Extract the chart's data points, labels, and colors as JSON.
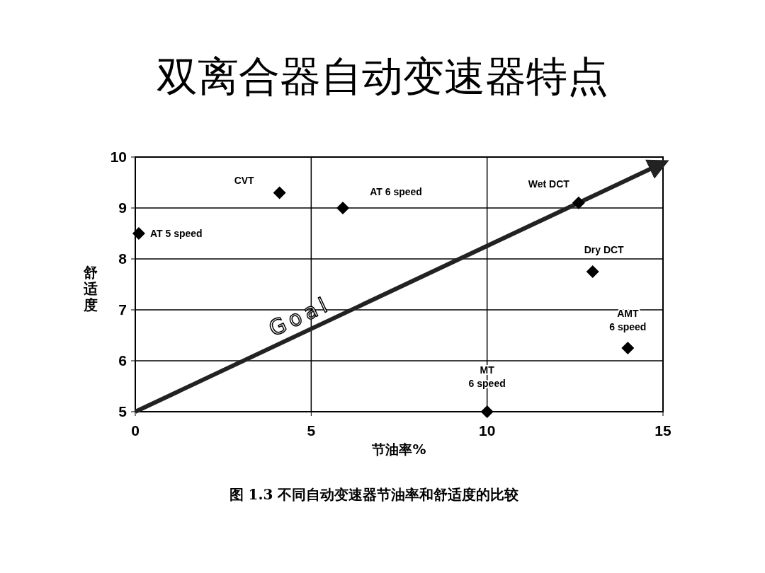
{
  "chart_data": {
    "type": "scatter",
    "title": "双离合器自动变速器特点",
    "xlabel": "节油率%",
    "ylabel": "舒适度",
    "xlim": [
      0,
      15
    ],
    "xticks": [
      0,
      5,
      10,
      15
    ],
    "ylim": [
      5,
      10
    ],
    "yticks": [
      5,
      6,
      7,
      8,
      9,
      10
    ],
    "grid": true,
    "series": [
      {
        "type": "line",
        "name": "Goal",
        "color": "#222222",
        "marker": "none",
        "x": [
          0,
          14.9
        ],
        "values": [
          5,
          9.85
        ]
      },
      {
        "color": "#000000",
        "marker": "diamond",
        "x": [
          4.1,
          5.9,
          0.1,
          12.6,
          13.0,
          14.0,
          10.0
        ],
        "values": [
          9.3,
          9.0,
          8.5,
          9.1,
          7.75,
          6.25,
          5.0
        ]
      }
    ],
    "annotations": [
      {
        "text": "CVT",
        "x": 4.1,
        "y": 9.3
      },
      {
        "text": "AT 6 speed",
        "x": 5.9,
        "y": 9.0
      },
      {
        "text": "AT 5 speed",
        "x": 0.1,
        "y": 8.5
      },
      {
        "text": "Wet DCT",
        "x": 12.6,
        "y": 9.1
      },
      {
        "text": "Dry DCT",
        "x": 13.0,
        "y": 7.75
      },
      {
        "text": "AMT\n6 speed",
        "x": 14.0,
        "y": 6.25
      },
      {
        "text": "MT\n6 speed",
        "x": 10.0,
        "y": 5.0
      },
      "图 1.3 不同自动变速器节油率和舒适度的比较"
    ]
  }
}
